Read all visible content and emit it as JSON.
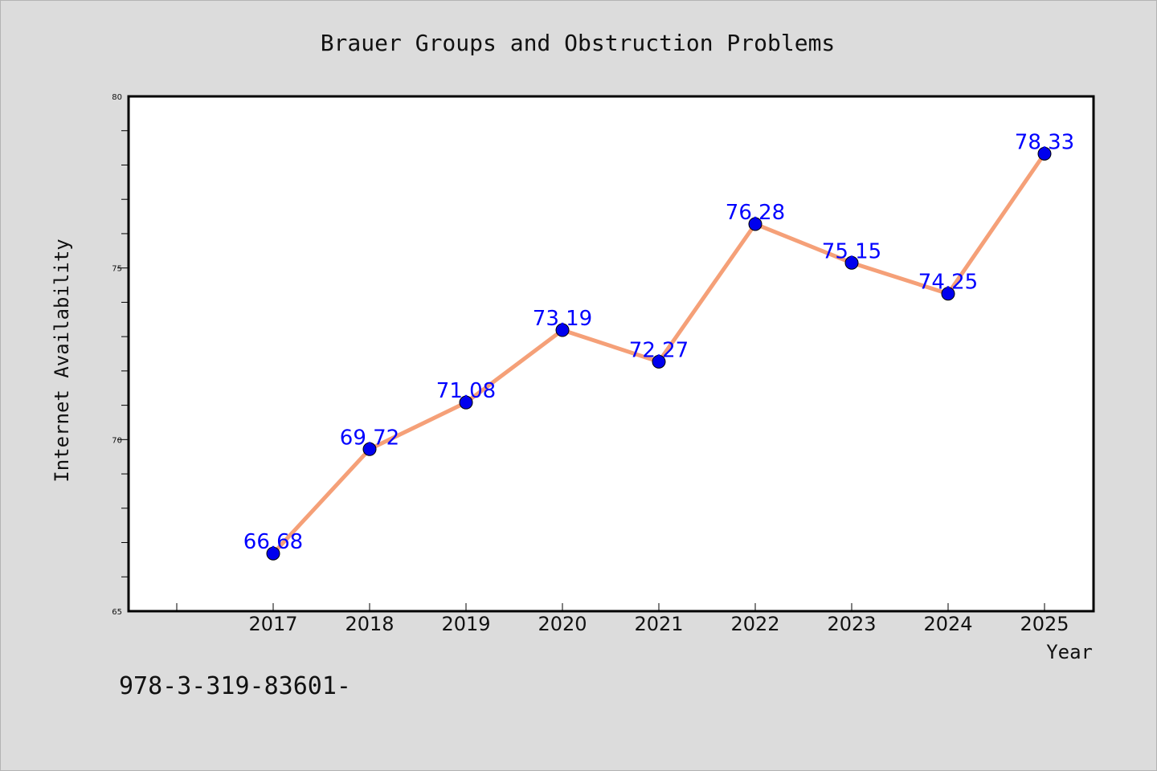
{
  "footer_text": "978-3-319-83601-",
  "chart_data": {
    "type": "line",
    "title": "Brauer Groups and Obstruction Problems",
    "xlabel": "Year",
    "ylabel": "Internet Availability",
    "categories": [
      "2017",
      "2018",
      "2019",
      "2020",
      "2021",
      "2022",
      "2023",
      "2024",
      "2025"
    ],
    "series": [
      {
        "values": [
          66.68,
          69.72,
          71.08,
          73.19,
          72.27,
          76.28,
          75.15,
          74.25,
          78.33
        ],
        "labels": [
          "66.68",
          "69.72",
          "71.08",
          "73.19",
          "72.27",
          "76.28",
          "75.15",
          "74.25",
          "78.33"
        ]
      }
    ],
    "ylim": [
      65,
      80
    ],
    "yticks": [
      "65",
      "70",
      "75",
      "80"
    ],
    "grid": false,
    "colors": {
      "line": "#f5a078",
      "marker": "#0000ee",
      "label": "#0000ff",
      "background": "#dcdcdc",
      "plot_bg": "#ffffff"
    }
  }
}
